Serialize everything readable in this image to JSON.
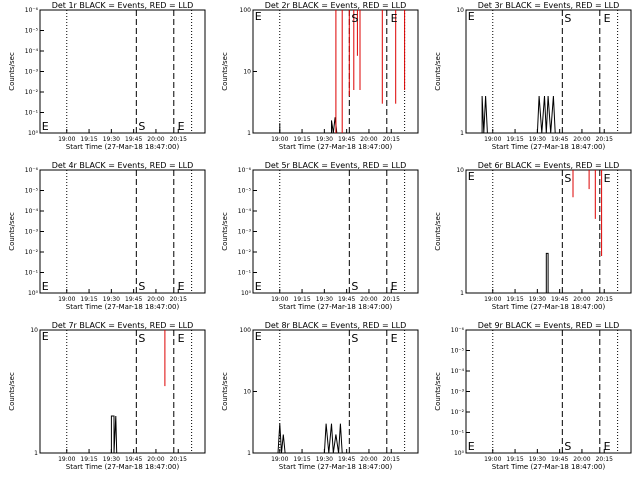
{
  "chart_data": [
    {
      "type": "line",
      "title": "Det 1r BLACK = Events, RED = LLD",
      "ylabel": "Counts/sec",
      "xlabel": "Start Time (27-Mar-18 18:47:00)",
      "yscale": "log",
      "ylim": [
        1,
        1e-06
      ],
      "ytick_labels": [
        "10⁰",
        "10⁻¹",
        "10⁻²",
        "10⁻³",
        "10⁻⁴",
        "10⁻⁵",
        "10⁻⁶"
      ],
      "xtick_labels": [
        "19:00",
        "19:15",
        "19:30",
        "19:45",
        "20:00",
        "20:15"
      ],
      "markers": {
        "E_start": "E",
        "S": "S",
        "E_end": "E"
      },
      "series": []
    },
    {
      "type": "line",
      "title": "Det 2r BLACK = Events, RED = LLD",
      "ylabel": "Counts/sec",
      "xlabel": "Start Time (27-Mar-18 18:47:00)",
      "yscale": "log",
      "ylim": [
        1,
        100
      ],
      "ytick_labels": [
        "1",
        "10",
        "100"
      ],
      "xtick_labels": [
        "19:00",
        "19:15",
        "19:30",
        "19:45",
        "20:00",
        "20:15"
      ],
      "markers": {
        "E_start": "E",
        "S": "S",
        "E_end": "E"
      },
      "series": [
        {
          "color": "#000000",
          "points": [
            [
              19.0,
              1
            ],
            [
              19.0,
              1.45
            ],
            [
              19.0,
              1
            ]
          ]
        },
        {
          "color": "#000000",
          "points": [
            [
              19.58,
              1
            ],
            [
              19.58,
              1.6
            ],
            [
              19.6,
              1
            ],
            [
              19.62,
              1.8
            ],
            [
              19.64,
              1
            ]
          ]
        },
        {
          "color": "#dd0000",
          "points": [
            [
              19.63,
              1
            ],
            [
              19.63,
              100
            ]
          ]
        },
        {
          "color": "#dd0000",
          "points": [
            [
              19.7,
              1
            ],
            [
              19.7,
              100
            ]
          ]
        },
        {
          "color": "#dd0000",
          "points": [
            [
              19.78,
              100
            ],
            [
              19.78,
              4
            ]
          ]
        },
        {
          "color": "#dd0000",
          "points": [
            [
              19.83,
              100
            ],
            [
              19.83,
              5
            ]
          ]
        },
        {
          "color": "#dd0000",
          "points": [
            [
              19.87,
              100
            ],
            [
              19.87,
              18
            ]
          ]
        },
        {
          "color": "#dd0000",
          "points": [
            [
              19.9,
              100
            ],
            [
              19.9,
              5
            ]
          ]
        },
        {
          "color": "#dd0000",
          "points": [
            [
              20.15,
              100
            ],
            [
              20.15,
              3
            ]
          ]
        },
        {
          "color": "#dd0000",
          "points": [
            [
              20.3,
              100
            ],
            [
              20.3,
              3
            ]
          ]
        },
        {
          "color": "#dd0000",
          "points": [
            [
              20.4,
              100
            ],
            [
              20.4,
              5
            ]
          ]
        }
      ]
    },
    {
      "type": "line",
      "title": "Det 3r BLACK = Events, RED = LLD",
      "ylabel": "Counts/sec",
      "xlabel": "Start Time (27-Mar-18 18:47:00)",
      "yscale": "log",
      "ylim": [
        1,
        10
      ],
      "ytick_labels": [
        "1",
        "10"
      ],
      "xtick_labels": [
        "19:00",
        "19:15",
        "19:30",
        "19:45",
        "20:00",
        "20:15"
      ],
      "markers": {
        "E_start": "E",
        "S": "S",
        "E_end": "E"
      },
      "series": [
        {
          "color": "#000000",
          "points": [
            [
              18.88,
              1
            ],
            [
              18.88,
              2
            ],
            [
              18.9,
              1
            ],
            [
              18.92,
              2
            ],
            [
              18.94,
              1
            ]
          ]
        },
        {
          "color": "#000000",
          "points": [
            [
              19.5,
              1
            ],
            [
              19.52,
              2
            ],
            [
              19.55,
              1
            ],
            [
              19.58,
              2
            ],
            [
              19.6,
              1
            ],
            [
              19.62,
              2
            ],
            [
              19.65,
              1
            ],
            [
              19.68,
              2
            ],
            [
              19.7,
              1
            ]
          ]
        }
      ]
    },
    {
      "type": "line",
      "title": "Det 4r BLACK = Events, RED = LLD",
      "ylabel": "Counts/sec",
      "xlabel": "Start Time (27-Mar-18 18:47:00)",
      "yscale": "log",
      "ylim": [
        1,
        1e-06
      ],
      "ytick_labels": [
        "10⁰",
        "10⁻¹",
        "10⁻²",
        "10⁻³",
        "10⁻⁴",
        "10⁻⁵",
        "10⁻⁶"
      ],
      "xtick_labels": [
        "19:00",
        "19:15",
        "19:30",
        "19:45",
        "20:00",
        "20:15"
      ],
      "markers": {
        "E_start": "E",
        "S": "S",
        "E_end": "E"
      },
      "series": []
    },
    {
      "type": "line",
      "title": "Det 5r BLACK = Events, RED = LLD",
      "ylabel": "Counts/sec",
      "xlabel": "Start Time (27-Mar-18 18:47:00)",
      "yscale": "log",
      "ylim": [
        1,
        1e-06
      ],
      "ytick_labels": [
        "10⁰",
        "10⁻¹",
        "10⁻²",
        "10⁻³",
        "10⁻⁴",
        "10⁻⁵",
        "10⁻⁶"
      ],
      "xtick_labels": [
        "19:00",
        "19:15",
        "19:30",
        "19:45",
        "20:00",
        "20:15"
      ],
      "markers": {
        "E_start": "E",
        "S": "S",
        "E_end": "E"
      },
      "series": []
    },
    {
      "type": "line",
      "title": "Det 6r BLACK = Events, RED = LLD",
      "ylabel": "Counts/sec",
      "xlabel": "Start Time (27-Mar-18 18:47:00)",
      "yscale": "log",
      "ylim": [
        1,
        10
      ],
      "ytick_labels": [
        "1",
        "10"
      ],
      "xtick_labels": [
        "19:00",
        "19:15",
        "19:30",
        "19:45",
        "20:00",
        "20:15"
      ],
      "markers": {
        "E_start": "E",
        "S": "S",
        "E_end": "E"
      },
      "series": [
        {
          "color": "#000000",
          "points": [
            [
              19.6,
              1
            ],
            [
              19.6,
              2.1
            ],
            [
              19.62,
              2.1
            ],
            [
              19.62,
              1
            ]
          ]
        },
        {
          "color": "#dd0000",
          "points": [
            [
              19.9,
              10
            ],
            [
              19.9,
              6
            ]
          ]
        },
        {
          "color": "#dd0000",
          "points": [
            [
              20.08,
              10
            ],
            [
              20.08,
              7
            ]
          ]
        },
        {
          "color": "#dd0000",
          "points": [
            [
              20.15,
              10
            ],
            [
              20.15,
              4
            ]
          ]
        },
        {
          "color": "#dd0000",
          "points": [
            [
              20.22,
              10
            ],
            [
              20.22,
              2
            ]
          ]
        }
      ]
    },
    {
      "type": "line",
      "title": "Det 7r BLACK = Events, RED = LLD",
      "ylabel": "Counts/sec",
      "xlabel": "Start Time (27-Mar-18 18:47:00)",
      "yscale": "log",
      "ylim": [
        1,
        10
      ],
      "ytick_labels": [
        "1",
        "10"
      ],
      "xtick_labels": [
        "19:00",
        "19:15",
        "19:30",
        "19:45",
        "20:00",
        "20:15"
      ],
      "markers": {
        "E_start": "E",
        "S": "S",
        "E_end": "E"
      },
      "series": [
        {
          "color": "#000000",
          "points": [
            [
              19.5,
              1
            ],
            [
              19.5,
              2
            ],
            [
              19.53,
              2
            ],
            [
              19.53,
              1
            ],
            [
              19.55,
              2
            ],
            [
              19.56,
              1
            ]
          ]
        },
        {
          "color": "#dd0000",
          "points": [
            [
              20.1,
              10
            ],
            [
              20.1,
              3.5
            ]
          ]
        }
      ]
    },
    {
      "type": "line",
      "title": "Det 8r BLACK = Events, RED = LLD",
      "ylabel": "Counts/sec",
      "xlabel": "Start Time (27-Mar-18 18:47:00)",
      "yscale": "log",
      "ylim": [
        1,
        100
      ],
      "ytick_labels": [
        "1",
        "10",
        "100"
      ],
      "xtick_labels": [
        "19:00",
        "19:15",
        "19:30",
        "19:45",
        "20:00",
        "20:15"
      ],
      "markers": {
        "E_start": "E",
        "S": "S",
        "E_end": "E"
      },
      "series": [
        {
          "color": "#000000",
          "points": [
            [
              18.98,
              1
            ],
            [
              19.0,
              3
            ],
            [
              19.02,
              1
            ],
            [
              19.04,
              2
            ],
            [
              19.06,
              1
            ]
          ]
        },
        {
          "color": "#000000",
          "points": [
            [
              19.5,
              1
            ],
            [
              19.52,
              3
            ],
            [
              19.55,
              1
            ],
            [
              19.58,
              3
            ],
            [
              19.6,
              1
            ],
            [
              19.63,
              2
            ],
            [
              19.66,
              1
            ],
            [
              19.68,
              3
            ],
            [
              19.7,
              1
            ]
          ]
        }
      ]
    },
    {
      "type": "line",
      "title": "Det 9r BLACK = Events, RED = LLD",
      "ylabel": "Counts/sec",
      "xlabel": "Start Time (27-Mar-18 18:47:00)",
      "yscale": "log",
      "ylim": [
        1,
        1e-06
      ],
      "ytick_labels": [
        "10⁰",
        "10⁻¹",
        "10⁻²",
        "10⁻³",
        "10⁻⁴",
        "10⁻⁵",
        "10⁻⁶"
      ],
      "xtick_labels": [
        "19:00",
        "19:15",
        "19:30",
        "19:45",
        "20:00",
        "20:15"
      ],
      "markers": {
        "E_start": "E",
        "S": "S",
        "E_end": "E"
      },
      "series": []
    }
  ]
}
